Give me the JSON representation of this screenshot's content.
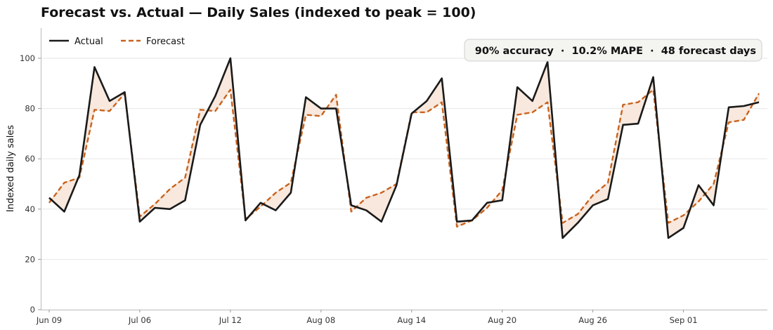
{
  "chart_data": {
    "type": "line",
    "title": "Forecast vs. Actual — Daily Sales (indexed to peak = 100)",
    "xlabel": "",
    "ylabel": "Indexed daily sales",
    "ylim": [
      0,
      112
    ],
    "yticks": [
      0,
      20,
      40,
      60,
      80,
      100
    ],
    "x_tick_labels": [
      {
        "label": "Jun 09",
        "index": 0
      },
      {
        "label": "Jul 06",
        "index": 6
      },
      {
        "label": "Jul 12",
        "index": 12
      },
      {
        "label": "Aug 08",
        "index": 18
      },
      {
        "label": "Aug 14",
        "index": 24
      },
      {
        "label": "Aug 20",
        "index": 30
      },
      {
        "label": "Aug 26",
        "index": 36
      },
      {
        "label": "Sep 01",
        "index": 42
      }
    ],
    "grid": "horizontal",
    "legend_position": "top-left",
    "series": [
      {
        "name": "Actual",
        "color": "#1a1a1a",
        "style": "solid",
        "values": [
          44.5,
          39,
          53.5,
          96.5,
          83,
          86.5,
          35,
          40.5,
          40,
          43.5,
          73.5,
          85,
          100,
          35.5,
          42.5,
          39.5,
          46.5,
          84.5,
          80,
          80,
          41.5,
          39.5,
          35,
          49.5,
          78,
          83,
          92,
          35,
          35.5,
          42.5,
          43.5,
          88.5,
          83,
          98.5,
          28.5,
          34.5,
          41.5,
          44,
          73.5,
          74,
          92.5,
          28.5,
          32.5,
          49.5,
          41.5,
          80.5,
          81,
          82.5
        ]
      },
      {
        "name": "Forecast",
        "color": "#c8621d",
        "style": "dashed",
        "values": [
          42.5,
          50.5,
          52.5,
          79.5,
          79,
          86,
          37,
          42,
          48,
          52.5,
          79.5,
          79,
          87.5,
          36,
          41,
          46.5,
          50.5,
          77.5,
          77,
          85.5,
          39,
          44.5,
          46.5,
          50,
          78.5,
          78.5,
          82.5,
          33,
          35.5,
          40.5,
          47.5,
          77.5,
          78.5,
          82.5,
          34.5,
          38,
          45.5,
          50.5,
          81.5,
          82.5,
          87.5,
          34.5,
          37.5,
          43,
          50,
          74.5,
          75.5,
          86
        ]
      }
    ],
    "fill_between": {
      "color": "#f7e6d9",
      "border_color": "#e8c4a8"
    },
    "annotation": "90% accuracy  ·  10.2% MAPE  ·  48 forecast days"
  }
}
